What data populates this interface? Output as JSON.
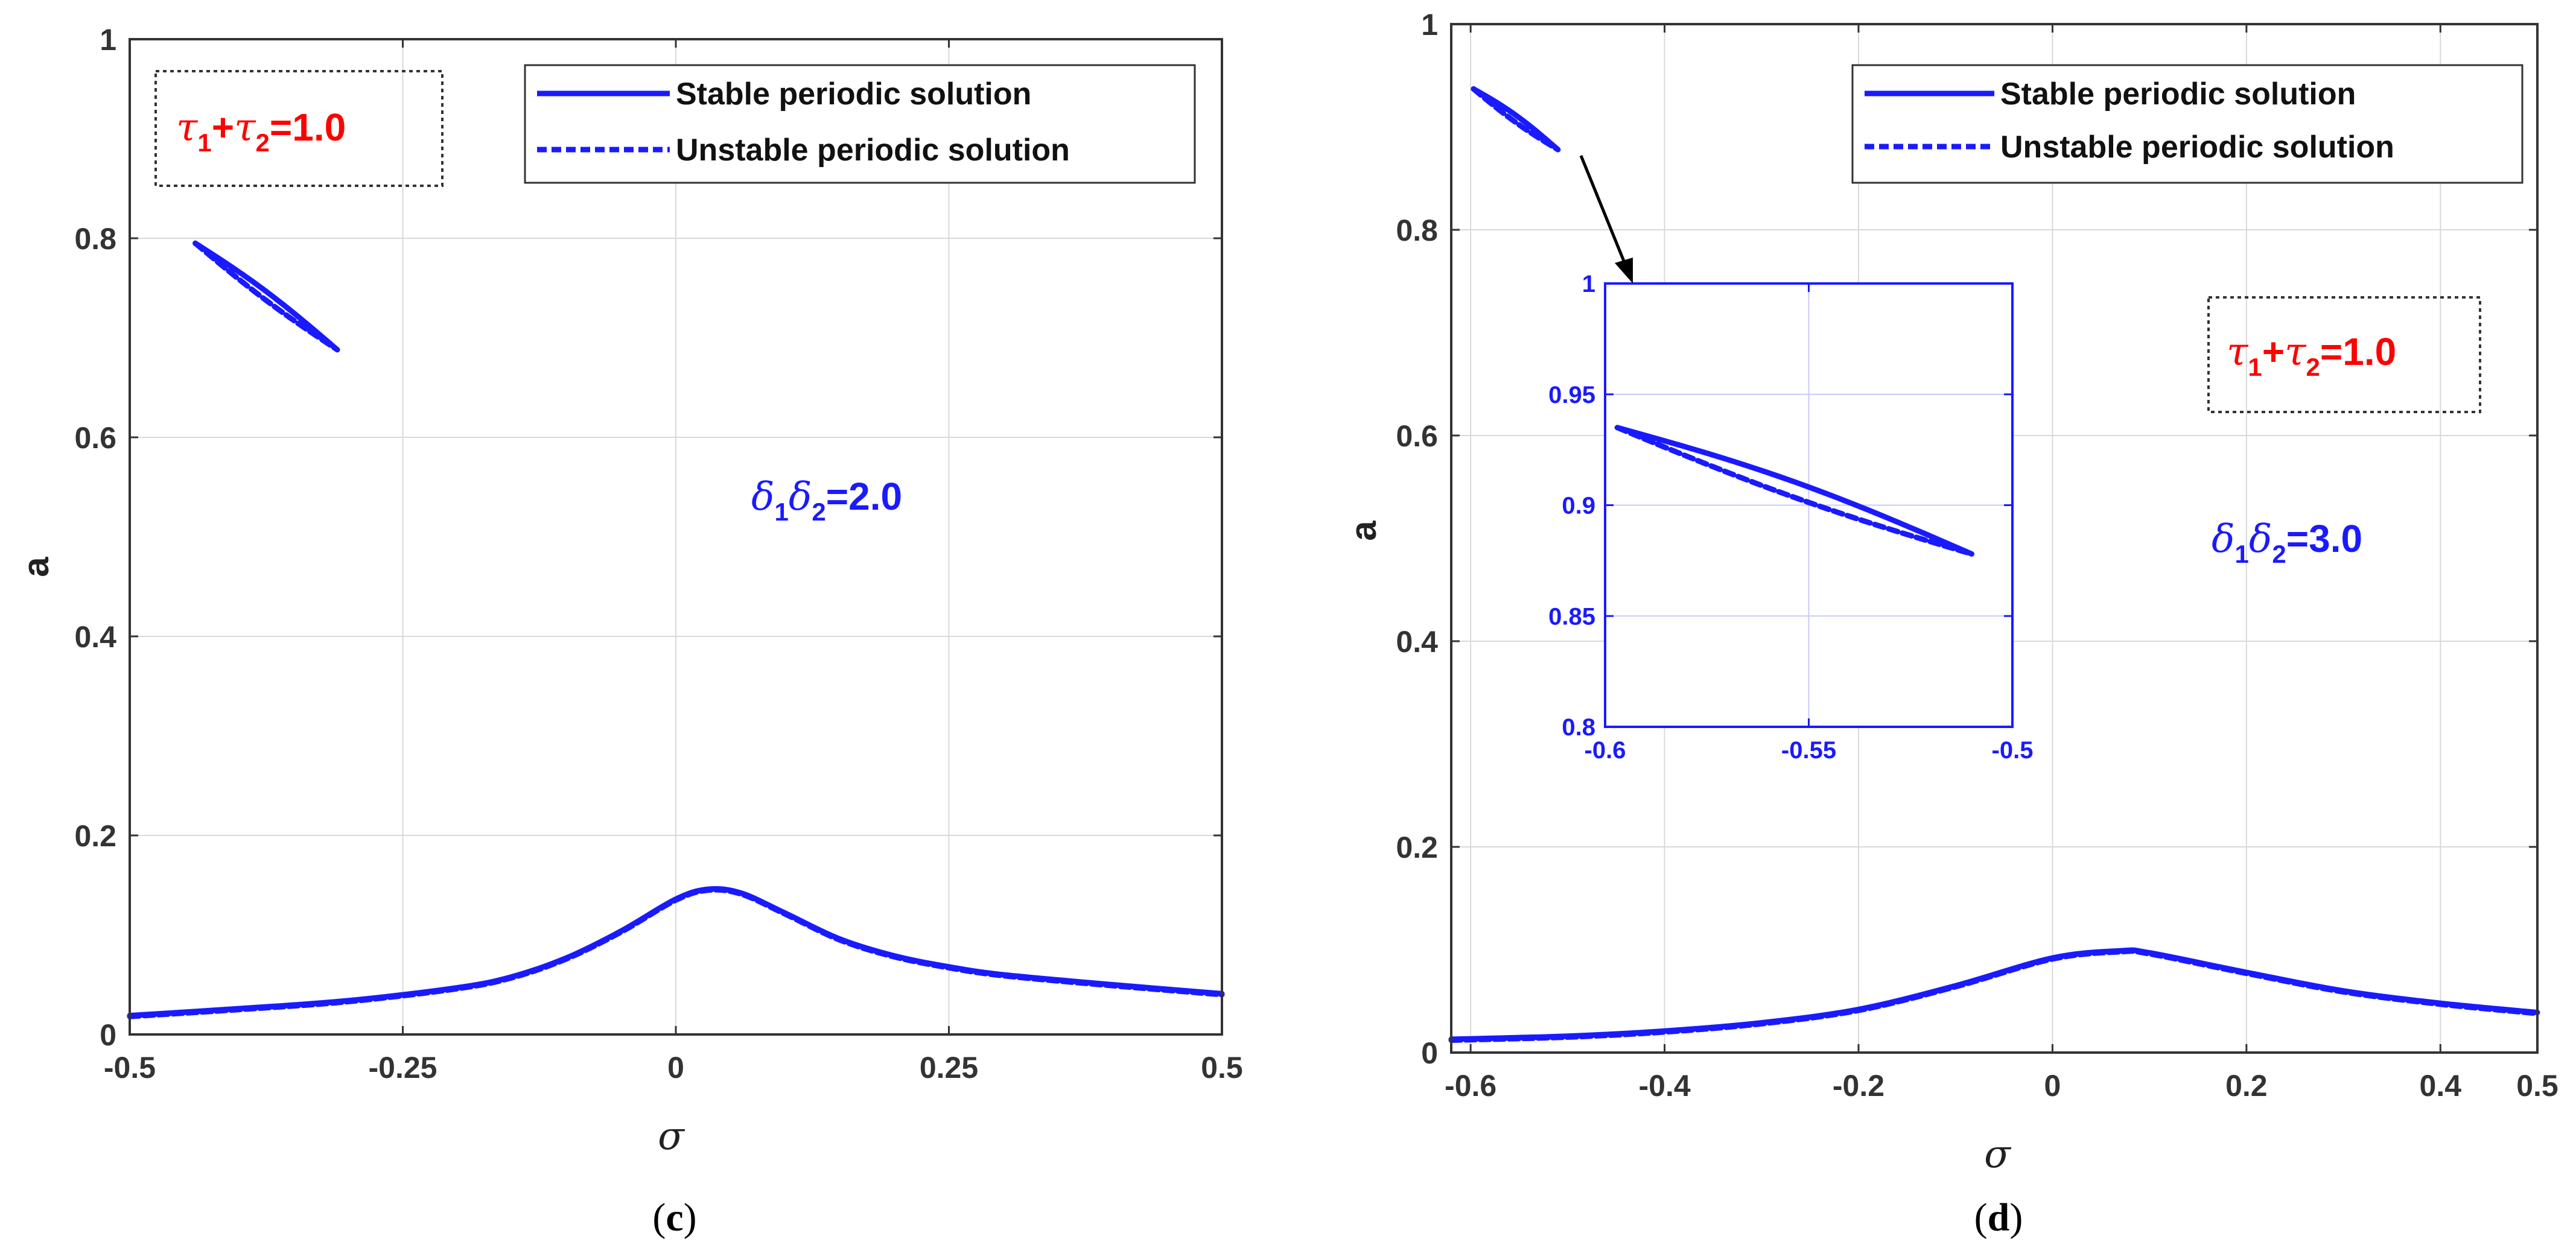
{
  "colors": {
    "curve": "#1a1aff",
    "annotation_red": "#ff0000",
    "annotation_blue": "#1a1aff",
    "grid": "#d9d9d9",
    "axes": "#333333"
  },
  "chart_data": [
    {
      "type": "line",
      "panel_label": "(c)",
      "panel_letter": "c",
      "xlabel": "σ",
      "ylabel": "a",
      "xlim": [
        -0.5,
        0.5
      ],
      "ylim": [
        0,
        1
      ],
      "xticks": [
        -0.5,
        -0.25,
        0,
        0.25,
        0.5
      ],
      "xtick_labels": [
        "-0.5",
        "-0.25",
        "0",
        "0.25",
        "0.5"
      ],
      "yticks": [
        0,
        0.2,
        0.4,
        0.6,
        0.8,
        1
      ],
      "ytick_labels": [
        "0",
        "0.2",
        "0.4",
        "0.6",
        "0.8",
        "1"
      ],
      "grid": true,
      "legend": [
        "Stable periodic solution",
        "Unstable periodic solution"
      ],
      "legend_position": "top-right",
      "annotation_tau": {
        "t1": "τ",
        "s1": "1",
        "plus": "+",
        "t2": "τ",
        "s2": "2",
        "rest": "=1.0"
      },
      "annotation_delta": {
        "d1": "δ",
        "s1": "1",
        "d2": "δ",
        "s2": "2",
        "rest": "=2.0"
      },
      "loop": {
        "start": [
          -0.44,
          0.795
        ],
        "end": [
          -0.31,
          0.688
        ],
        "upper_bulge": 0.005,
        "lower_bulge": -0.004
      },
      "series": [
        {
          "name": "Stable periodic solution",
          "style": "solid",
          "x": [
            -0.5,
            -0.4,
            -0.3,
            -0.2,
            -0.15,
            -0.1,
            -0.05,
            0,
            0.03,
            0.06,
            0.1,
            0.15,
            0.2,
            0.25,
            0.3,
            0.4,
            0.5
          ],
          "y": [
            0.019,
            0.026,
            0.034,
            0.047,
            0.058,
            0.077,
            0.104,
            0.136,
            0.146,
            0.142,
            0.122,
            0.096,
            0.079,
            0.068,
            0.06,
            0.05,
            0.041
          ]
        },
        {
          "name": "Unstable periodic solution",
          "style": "dashed",
          "x": [
            -0.5,
            -0.4,
            -0.3,
            -0.2,
            -0.15,
            -0.1,
            -0.05,
            0,
            0.03,
            0.06,
            0.1,
            0.15,
            0.2,
            0.25,
            0.3,
            0.4,
            0.5
          ],
          "y": [
            0.018,
            0.025,
            0.033,
            0.046,
            0.057,
            0.076,
            0.103,
            0.135,
            0.145,
            0.141,
            0.121,
            0.095,
            0.078,
            0.067,
            0.059,
            0.049,
            0.04
          ]
        }
      ]
    },
    {
      "type": "line",
      "panel_label": "(d)",
      "panel_letter": "d",
      "xlabel": "σ",
      "ylabel": "a",
      "xlim": [
        -0.62,
        0.5
      ],
      "ylim": [
        0,
        1
      ],
      "xticks": [
        -0.6,
        -0.4,
        -0.2,
        0,
        0.2,
        0.4,
        0.5
      ],
      "xtick_labels": [
        "-0.6",
        "-0.4",
        "-0.2",
        "0",
        "0.2",
        "0.4",
        "0.5"
      ],
      "yticks": [
        0,
        0.2,
        0.4,
        0.6,
        0.8,
        1
      ],
      "ytick_labels": [
        "0",
        "0.2",
        "0.4",
        "0.6",
        "0.8",
        "1"
      ],
      "grid": true,
      "legend": [
        "Stable periodic solution",
        "Unstable periodic solution"
      ],
      "legend_position": "top-right",
      "annotation_tau": {
        "t1": "τ",
        "s1": "1",
        "plus": "+",
        "t2": "τ",
        "s2": "2",
        "rest": "=1.0"
      },
      "annotation_delta": {
        "d1": "δ",
        "s1": "1",
        "d2": "δ",
        "s2": "2",
        "rest": "=3.0"
      },
      "loop": {
        "start": [
          -0.597,
          0.937
        ],
        "end": [
          -0.51,
          0.878
        ],
        "upper_bulge": 0.004,
        "lower_bulge": -0.003
      },
      "series": [
        {
          "name": "Stable periodic solution",
          "style": "solid",
          "x": [
            -0.62,
            -0.5,
            -0.4,
            -0.3,
            -0.2,
            -0.1,
            0,
            0.07,
            0.1,
            0.2,
            0.3,
            0.4,
            0.5
          ],
          "y": [
            0.013,
            0.016,
            0.021,
            0.029,
            0.042,
            0.065,
            0.092,
            0.099,
            0.097,
            0.078,
            0.06,
            0.048,
            0.039
          ]
        },
        {
          "name": "Unstable periodic solution",
          "style": "dashed",
          "x": [
            -0.62,
            -0.5,
            -0.4,
            -0.3,
            -0.2,
            -0.1,
            0,
            0.07,
            0.1,
            0.2,
            0.3,
            0.4,
            0.5
          ],
          "y": [
            0.012,
            0.015,
            0.02,
            0.028,
            0.041,
            0.064,
            0.091,
            0.098,
            0.096,
            0.077,
            0.059,
            0.047,
            0.038
          ]
        }
      ],
      "inset": {
        "xlim": [
          -0.6,
          -0.5
        ],
        "ylim": [
          0.8,
          1
        ],
        "xticks": [
          -0.6,
          -0.55,
          -0.5
        ],
        "xtick_labels": [
          "-0.6",
          "-0.55",
          "-0.5"
        ],
        "yticks": [
          0.8,
          0.85,
          0.9,
          0.95,
          1
        ],
        "ytick_labels": [
          "0.8",
          "0.85",
          "0.9",
          "0.95",
          "1"
        ],
        "grid": true,
        "loop": {
          "start": [
            -0.597,
            0.935
          ],
          "end": [
            -0.51,
            0.878
          ],
          "upper_bulge": 0.004,
          "lower_bulge": -0.003
        }
      }
    }
  ]
}
